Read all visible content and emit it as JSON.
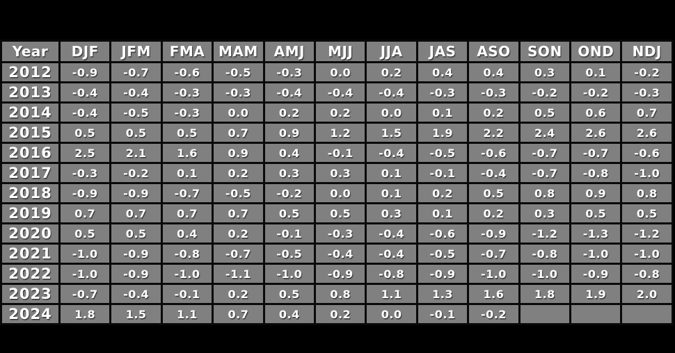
{
  "colors": {
    "background": "#000000",
    "neutral": "#808080",
    "la_nina": "#4DA2D3",
    "el_nino": "#D96C79",
    "border": "#0a0a0a",
    "text": "#FFFFFF"
  },
  "chart_data": {
    "type": "table",
    "columns": [
      "Year",
      "DJF",
      "JFM",
      "FMA",
      "MAM",
      "AMJ",
      "MJJ",
      "JJA",
      "JAS",
      "ASO",
      "SON",
      "OND",
      "NDJ"
    ],
    "rows": [
      {
        "year": "2012",
        "values": [
          "-0.9",
          "-0.7",
          "-0.6",
          "-0.5",
          "-0.3",
          "0.0",
          "0.2",
          "0.4",
          "0.4",
          "0.3",
          "0.1",
          "-0.2"
        ],
        "states": [
          "la_nina",
          "la_nina",
          "la_nina",
          "la_nina",
          "neutral",
          "neutral",
          "neutral",
          "neutral",
          "neutral",
          "neutral",
          "neutral",
          "neutral"
        ]
      },
      {
        "year": "2013",
        "values": [
          "-0.4",
          "-0.4",
          "-0.3",
          "-0.3",
          "-0.4",
          "-0.4",
          "-0.4",
          "-0.3",
          "-0.3",
          "-0.2",
          "-0.2",
          "-0.3"
        ],
        "states": [
          "neutral",
          "neutral",
          "neutral",
          "neutral",
          "neutral",
          "neutral",
          "neutral",
          "neutral",
          "neutral",
          "neutral",
          "neutral",
          "neutral"
        ]
      },
      {
        "year": "2014",
        "values": [
          "-0.4",
          "-0.5",
          "-0.3",
          "0.0",
          "0.2",
          "0.2",
          "0.0",
          "0.1",
          "0.2",
          "0.5",
          "0.6",
          "0.7"
        ],
        "states": [
          "neutral",
          "neutral",
          "neutral",
          "neutral",
          "neutral",
          "neutral",
          "neutral",
          "neutral",
          "neutral",
          "el_nino",
          "el_nino",
          "el_nino"
        ]
      },
      {
        "year": "2015",
        "values": [
          "0.5",
          "0.5",
          "0.5",
          "0.7",
          "0.9",
          "1.2",
          "1.5",
          "1.9",
          "2.2",
          "2.4",
          "2.6",
          "2.6"
        ],
        "states": [
          "el_nino",
          "el_nino",
          "el_nino",
          "el_nino",
          "el_nino",
          "el_nino",
          "el_nino",
          "el_nino",
          "el_nino",
          "el_nino",
          "el_nino",
          "el_nino"
        ]
      },
      {
        "year": "2016",
        "values": [
          "2.5",
          "2.1",
          "1.6",
          "0.9",
          "0.4",
          "-0.1",
          "-0.4",
          "-0.5",
          "-0.6",
          "-0.7",
          "-0.7",
          "-0.6"
        ],
        "states": [
          "el_nino",
          "el_nino",
          "el_nino",
          "el_nino",
          "neutral",
          "neutral",
          "neutral",
          "la_nina",
          "la_nina",
          "la_nina",
          "la_nina",
          "la_nina"
        ]
      },
      {
        "year": "2017",
        "values": [
          "-0.3",
          "-0.2",
          "0.1",
          "0.2",
          "0.3",
          "0.3",
          "0.1",
          "-0.1",
          "-0.4",
          "-0.7",
          "-0.8",
          "-1.0"
        ],
        "states": [
          "neutral",
          "neutral",
          "neutral",
          "neutral",
          "neutral",
          "neutral",
          "neutral",
          "neutral",
          "neutral",
          "la_nina",
          "la_nina",
          "la_nina"
        ]
      },
      {
        "year": "2018",
        "values": [
          "-0.9",
          "-0.9",
          "-0.7",
          "-0.5",
          "-0.2",
          "0.0",
          "0.1",
          "0.2",
          "0.5",
          "0.8",
          "0.9",
          "0.8"
        ],
        "states": [
          "la_nina",
          "la_nina",
          "la_nina",
          "la_nina",
          "neutral",
          "neutral",
          "neutral",
          "neutral",
          "el_nino",
          "el_nino",
          "el_nino",
          "el_nino"
        ]
      },
      {
        "year": "2019",
        "values": [
          "0.7",
          "0.7",
          "0.7",
          "0.7",
          "0.5",
          "0.5",
          "0.3",
          "0.1",
          "0.2",
          "0.3",
          "0.5",
          "0.5"
        ],
        "states": [
          "el_nino",
          "el_nino",
          "el_nino",
          "el_nino",
          "el_nino",
          "el_nino",
          "neutral",
          "neutral",
          "neutral",
          "neutral",
          "neutral",
          "neutral"
        ]
      },
      {
        "year": "2020",
        "values": [
          "0.5",
          "0.5",
          "0.4",
          "0.2",
          "-0.1",
          "-0.3",
          "-0.4",
          "-0.6",
          "-0.9",
          "-1.2",
          "-1.3",
          "-1.2"
        ],
        "states": [
          "neutral",
          "neutral",
          "neutral",
          "neutral",
          "neutral",
          "neutral",
          "neutral",
          "la_nina",
          "la_nina",
          "la_nina",
          "la_nina",
          "la_nina"
        ]
      },
      {
        "year": "2021",
        "values": [
          "-1.0",
          "-0.9",
          "-0.8",
          "-0.7",
          "-0.5",
          "-0.4",
          "-0.4",
          "-0.5",
          "-0.7",
          "-0.8",
          "-1.0",
          "-1.0"
        ],
        "states": [
          "la_nina",
          "la_nina",
          "la_nina",
          "la_nina",
          "la_nina",
          "neutral",
          "neutral",
          "la_nina",
          "la_nina",
          "la_nina",
          "la_nina",
          "la_nina"
        ]
      },
      {
        "year": "2022",
        "values": [
          "-1.0",
          "-0.9",
          "-1.0",
          "-1.1",
          "-1.0",
          "-0.9",
          "-0.8",
          "-0.9",
          "-1.0",
          "-1.0",
          "-0.9",
          "-0.8"
        ],
        "states": [
          "la_nina",
          "la_nina",
          "la_nina",
          "la_nina",
          "la_nina",
          "la_nina",
          "la_nina",
          "la_nina",
          "la_nina",
          "la_nina",
          "la_nina",
          "la_nina"
        ]
      },
      {
        "year": "2023",
        "values": [
          "-0.7",
          "-0.4",
          "-0.1",
          "0.2",
          "0.5",
          "0.8",
          "1.1",
          "1.3",
          "1.6",
          "1.8",
          "1.9",
          "2.0"
        ],
        "states": [
          "la_nina",
          "neutral",
          "neutral",
          "neutral",
          "el_nino",
          "el_nino",
          "el_nino",
          "el_nino",
          "el_nino",
          "el_nino",
          "el_nino",
          "el_nino"
        ]
      },
      {
        "year": "2024",
        "values": [
          "1.8",
          "1.5",
          "1.1",
          "0.7",
          "0.4",
          "0.2",
          "0.0",
          "-0.1",
          "-0.2",
          "",
          "",
          ""
        ],
        "states": [
          "el_nino",
          "el_nino",
          "el_nino",
          "el_nino",
          "neutral",
          "neutral",
          "neutral",
          "neutral",
          "neutral",
          "neutral",
          "neutral",
          "neutral"
        ]
      }
    ]
  }
}
